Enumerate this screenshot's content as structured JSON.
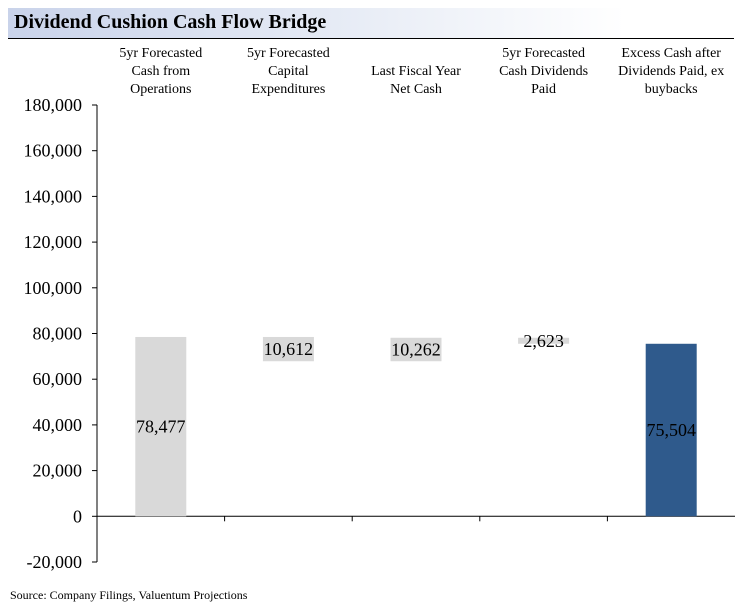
{
  "header": {
    "title": "Dividend Cushion Cash Flow Bridge"
  },
  "footer": {
    "source": "Source: Company Filings, Valuentum Projections"
  },
  "colors": {
    "gray_bar": "#d9d9d9",
    "blue_bar": "#2f5a8c"
  },
  "chart_data": {
    "type": "bar",
    "subtype": "waterfall",
    "title": "Dividend Cushion Cash Flow Bridge",
    "categories": [
      [
        "5yr Forecasted",
        "Cash from",
        "Operations"
      ],
      [
        "5yr Forecasted",
        "Capital",
        "Expenditures"
      ],
      [
        "Last Fiscal Year",
        "Net Cash"
      ],
      [
        "5yr Forecasted",
        "Cash Dividends",
        "Paid"
      ],
      [
        "Excess Cash after",
        "Dividends Paid, ex",
        "buybacks"
      ]
    ],
    "bars": [
      {
        "start": 0,
        "end": 78477,
        "label": "78,477",
        "color": "gray"
      },
      {
        "start": 78477,
        "end": 67865,
        "label": "10,612",
        "color": "gray"
      },
      {
        "start": 67865,
        "end": 78127,
        "label": "10,262",
        "color": "gray"
      },
      {
        "start": 78127,
        "end": 75504,
        "label": "2,623",
        "color": "gray"
      },
      {
        "start": 0,
        "end": 75504,
        "label": "75,504",
        "color": "blue"
      }
    ],
    "ylim": [
      -20000,
      180000
    ],
    "yticks": [
      "-20,000",
      "0",
      "20,000",
      "40,000",
      "60,000",
      "80,000",
      "100,000",
      "120,000",
      "140,000",
      "160,000",
      "180,000"
    ],
    "grid": false,
    "legend": "none",
    "xlabel": "",
    "ylabel": ""
  }
}
